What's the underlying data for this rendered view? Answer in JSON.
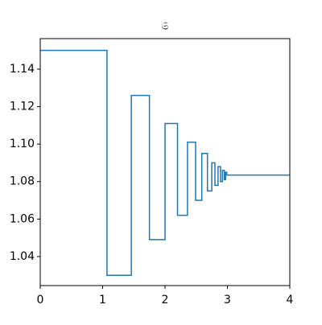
{
  "chart_data": {
    "type": "line",
    "title": "𝔖",
    "x": [
      0,
      1.07,
      1.07,
      1.46,
      1.46,
      1.75,
      1.75,
      2.0,
      2.0,
      2.2,
      2.2,
      2.36,
      2.36,
      2.49,
      2.49,
      2.59,
      2.59,
      2.68,
      2.68,
      2.75,
      2.75,
      2.8,
      2.8,
      2.85,
      2.85,
      2.89,
      2.89,
      2.92,
      2.92,
      2.95,
      2.95,
      2.97,
      2.97,
      2.99,
      2.99,
      4
    ],
    "series": [
      {
        "color": "#1f77b4",
        "values": [
          1.15,
          1.15,
          1.03,
          1.03,
          1.126,
          1.126,
          1.049,
          1.049,
          1.111,
          1.111,
          1.062,
          1.062,
          1.101,
          1.101,
          1.07,
          1.07,
          1.095,
          1.095,
          1.075,
          1.075,
          1.09,
          1.09,
          1.078,
          1.078,
          1.088,
          1.088,
          1.08,
          1.08,
          1.086,
          1.086,
          1.081,
          1.081,
          1.085,
          1.085,
          1.0835,
          1.0835
        ]
      }
    ],
    "xlim": [
      0,
      4
    ],
    "xticks": [
      0,
      1,
      2,
      3,
      4
    ],
    "ylim": [
      1.0245,
      1.1563
    ],
    "yticks": [
      1.04,
      1.06,
      1.08,
      {
        "value": 1.1,
        "label": "1.10"
      },
      1.12,
      1.14
    ]
  }
}
